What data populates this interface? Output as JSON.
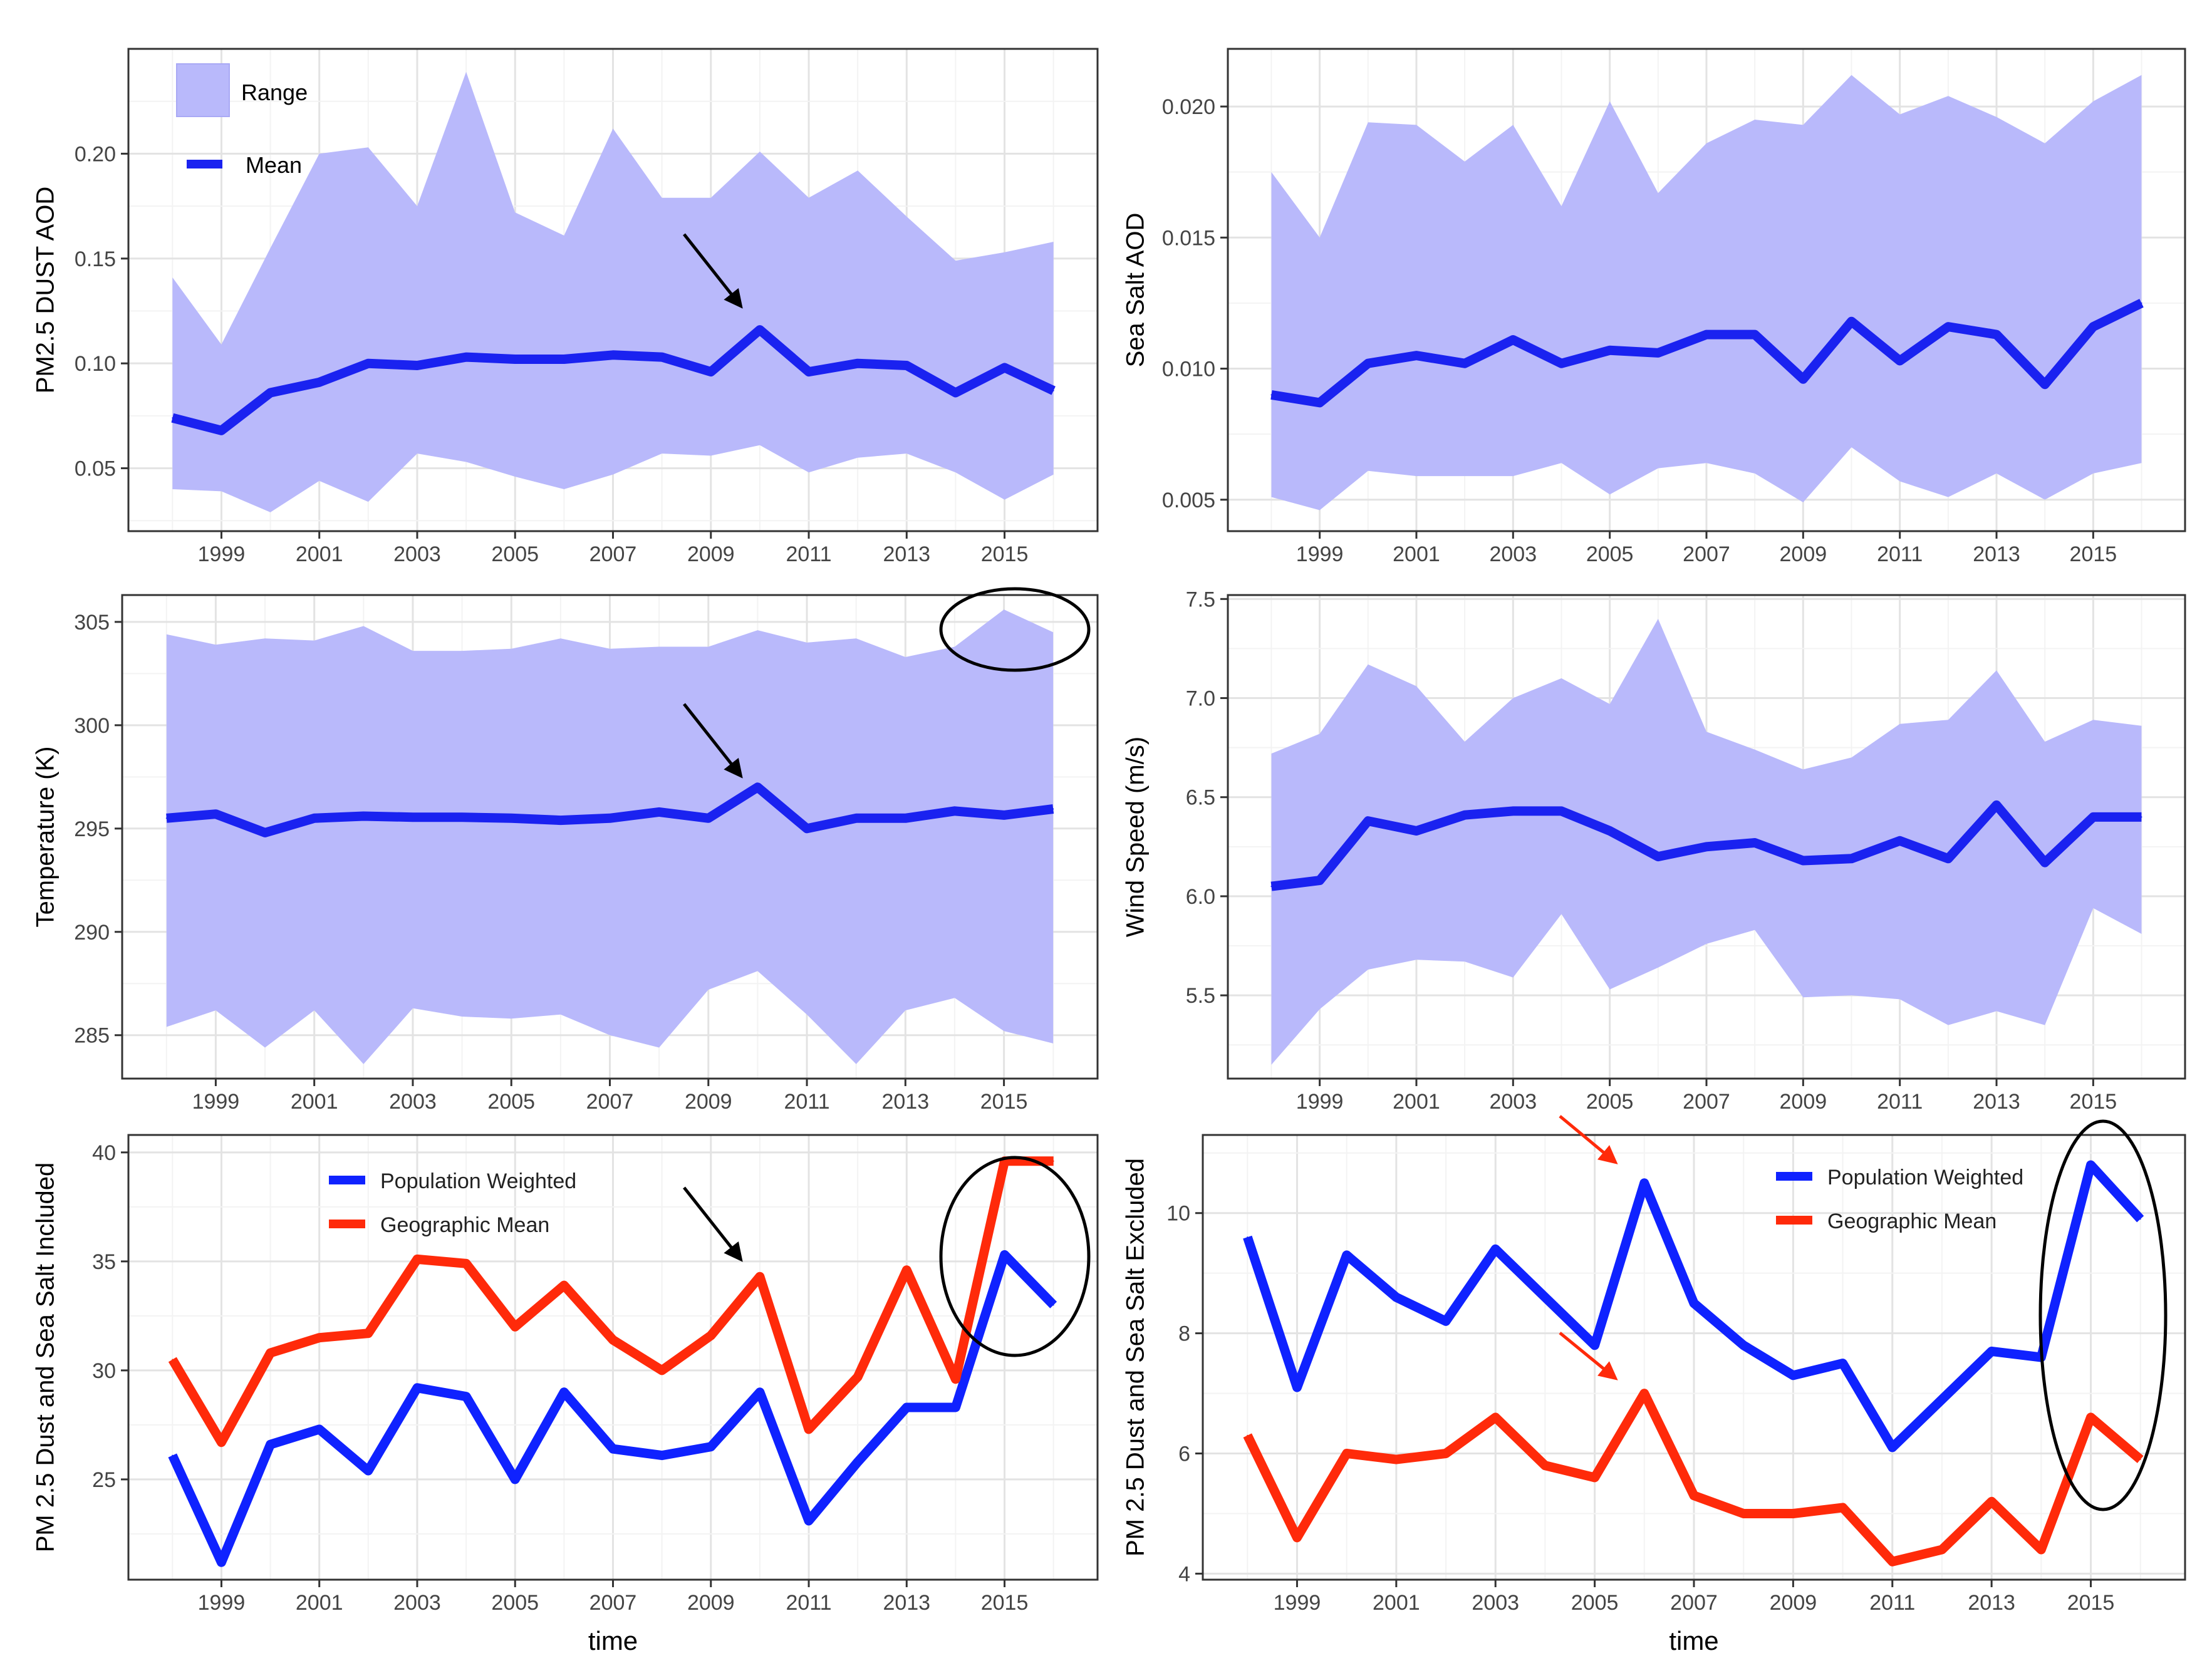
{
  "colors": {
    "mean": "#1a22f0",
    "range": "#b9b9fb",
    "population": "#0f22ff",
    "geographic": "#ff2a0a",
    "grid_major": "#e3e3e3",
    "grid_minor": "#f3f3f3",
    "panel_border": "#333333",
    "tick_text": "#444444",
    "annotation_black": "#000000",
    "annotation_red": "#ff2a0a"
  },
  "chart_data": [
    {
      "id": "dust",
      "type": "area",
      "title": "",
      "xlabel": "",
      "ylabel": "PM2.5 DUST AOD",
      "xlim": [
        1997.1,
        2016.9
      ],
      "ylim": [
        0.02,
        0.25
      ],
      "yticks": [
        0.05,
        0.1,
        0.15,
        0.2
      ],
      "ytick_labels": [
        "0.05",
        "0.10",
        "0.15",
        "0.20"
      ],
      "xticks": [
        1999,
        2001,
        2003,
        2005,
        2007,
        2009,
        2011,
        2013,
        2015
      ],
      "xtick_labels": [
        "1999",
        "2001",
        "2003",
        "2005",
        "2007",
        "2009",
        "2011",
        "2013",
        "2015"
      ],
      "x": [
        1998,
        1999,
        2000,
        2001,
        2002,
        2003,
        2004,
        2005,
        2006,
        2007,
        2008,
        2009,
        2010,
        2011,
        2012,
        2013,
        2014,
        2015,
        2016
      ],
      "series": [
        {
          "name": "Mean",
          "values": [
            0.074,
            0.068,
            0.086,
            0.091,
            0.1,
            0.099,
            0.103,
            0.102,
            0.102,
            0.104,
            0.103,
            0.096,
            0.116,
            0.096,
            0.1,
            0.099,
            0.086,
            0.098,
            0.087
          ]
        },
        {
          "name": "Range max",
          "values": [
            0.141,
            0.109,
            0.155,
            0.2,
            0.203,
            0.175,
            0.239,
            0.172,
            0.161,
            0.212,
            0.179,
            0.179,
            0.201,
            0.179,
            0.192,
            0.17,
            0.149,
            0.153,
            0.158
          ]
        },
        {
          "name": "Range min",
          "values": [
            0.04,
            0.039,
            0.029,
            0.044,
            0.034,
            0.057,
            0.053,
            0.046,
            0.04,
            0.047,
            0.057,
            0.056,
            0.061,
            0.048,
            0.055,
            0.057,
            0.048,
            0.035,
            0.047
          ]
        }
      ],
      "legend": [
        "Range",
        "Mean"
      ],
      "legend_position": "top-left"
    },
    {
      "id": "seasalt",
      "type": "area",
      "title": "",
      "xlabel": "",
      "ylabel": "Sea Salt AOD",
      "xlim": [
        1997.1,
        2016.9
      ],
      "ylim": [
        0.0038,
        0.0222
      ],
      "yticks": [
        0.005,
        0.01,
        0.015,
        0.02
      ],
      "ytick_labels": [
        "0.005",
        "0.010",
        "0.015",
        "0.020"
      ],
      "xticks": [
        1999,
        2001,
        2003,
        2005,
        2007,
        2009,
        2011,
        2013,
        2015
      ],
      "xtick_labels": [
        "1999",
        "2001",
        "2003",
        "2005",
        "2007",
        "2009",
        "2011",
        "2013",
        "2015"
      ],
      "x": [
        1998,
        1999,
        2000,
        2001,
        2002,
        2003,
        2004,
        2005,
        2006,
        2007,
        2008,
        2009,
        2010,
        2011,
        2012,
        2013,
        2014,
        2015,
        2016
      ],
      "series": [
        {
          "name": "Mean",
          "values": [
            0.009,
            0.0087,
            0.0102,
            0.0105,
            0.0102,
            0.0111,
            0.0102,
            0.0107,
            0.0106,
            0.0113,
            0.0113,
            0.0096,
            0.0118,
            0.0103,
            0.0116,
            0.0113,
            0.0094,
            0.0116,
            0.0125
          ]
        },
        {
          "name": "Range max",
          "values": [
            0.0175,
            0.015,
            0.0194,
            0.0193,
            0.0179,
            0.0193,
            0.0162,
            0.0202,
            0.0167,
            0.0186,
            0.0195,
            0.0193,
            0.0212,
            0.0197,
            0.0204,
            0.0196,
            0.0186,
            0.0202,
            0.0212
          ]
        },
        {
          "name": "Range min",
          "values": [
            0.0051,
            0.0046,
            0.0061,
            0.0059,
            0.0059,
            0.0059,
            0.0064,
            0.0052,
            0.0062,
            0.0064,
            0.006,
            0.0049,
            0.007,
            0.0057,
            0.0051,
            0.006,
            0.005,
            0.006,
            0.0064
          ]
        }
      ]
    },
    {
      "id": "temperature",
      "type": "area",
      "title": "",
      "xlabel": "",
      "ylabel": "Temperature (K)",
      "xlim": [
        1997.1,
        2016.9
      ],
      "ylim": [
        282.9,
        306.3
      ],
      "yticks": [
        285,
        290,
        295,
        300,
        305
      ],
      "ytick_labels": [
        "285",
        "290",
        "295",
        "300",
        "305"
      ],
      "xticks": [
        1999,
        2001,
        2003,
        2005,
        2007,
        2009,
        2011,
        2013,
        2015
      ],
      "xtick_labels": [
        "1999",
        "2001",
        "2003",
        "2005",
        "2007",
        "2009",
        "2011",
        "2013",
        "2015"
      ],
      "x": [
        1998,
        1999,
        2000,
        2001,
        2002,
        2003,
        2004,
        2005,
        2006,
        2007,
        2008,
        2009,
        2010,
        2011,
        2012,
        2013,
        2014,
        2015,
        2016
      ],
      "series": [
        {
          "name": "Mean",
          "values": [
            295.5,
            295.7,
            294.8,
            295.5,
            295.6,
            295.55,
            295.55,
            295.5,
            295.4,
            295.5,
            295.8,
            295.5,
            297.0,
            295.0,
            295.5,
            295.5,
            295.85,
            295.65,
            295.95
          ]
        },
        {
          "name": "Range max",
          "values": [
            304.4,
            303.9,
            304.2,
            304.1,
            304.8,
            303.6,
            303.6,
            303.7,
            304.2,
            303.7,
            303.8,
            303.8,
            304.6,
            304.0,
            304.2,
            303.3,
            303.8,
            305.6,
            304.5
          ]
        },
        {
          "name": "Range min",
          "values": [
            285.4,
            286.2,
            284.4,
            286.2,
            283.6,
            286.3,
            285.9,
            285.8,
            286.0,
            285.0,
            284.4,
            287.2,
            288.1,
            286.0,
            283.6,
            286.2,
            286.8,
            285.2,
            284.6
          ]
        }
      ]
    },
    {
      "id": "windspeed",
      "type": "area",
      "title": "",
      "xlabel": "",
      "ylabel": "Wind Speed (m/s)",
      "xlim": [
        1997.1,
        2016.9
      ],
      "ylim": [
        5.08,
        7.52
      ],
      "yticks": [
        5.5,
        6.0,
        6.5,
        7.0,
        7.5
      ],
      "ytick_labels": [
        "5.5",
        "6.0",
        "6.5",
        "7.0",
        "7.5"
      ],
      "xticks": [
        1999,
        2001,
        2003,
        2005,
        2007,
        2009,
        2011,
        2013,
        2015
      ],
      "xtick_labels": [
        "1999",
        "2001",
        "2003",
        "2005",
        "2007",
        "2009",
        "2011",
        "2013",
        "2015"
      ],
      "x": [
        1998,
        1999,
        2000,
        2001,
        2002,
        2003,
        2004,
        2005,
        2006,
        2007,
        2008,
        2009,
        2010,
        2011,
        2012,
        2013,
        2014,
        2015,
        2016
      ],
      "series": [
        {
          "name": "Mean",
          "values": [
            6.05,
            6.08,
            6.38,
            6.33,
            6.41,
            6.43,
            6.43,
            6.33,
            6.2,
            6.25,
            6.27,
            6.18,
            6.19,
            6.28,
            6.19,
            6.46,
            6.17,
            6.4,
            6.4
          ]
        },
        {
          "name": "Range max",
          "values": [
            6.72,
            6.82,
            7.17,
            7.06,
            6.78,
            7.0,
            7.1,
            6.97,
            7.4,
            6.83,
            6.74,
            6.64,
            6.7,
            6.87,
            6.89,
            7.14,
            6.78,
            6.89,
            6.86
          ]
        },
        {
          "name": "Range min",
          "values": [
            5.15,
            5.43,
            5.63,
            5.68,
            5.67,
            5.59,
            5.91,
            5.53,
            5.64,
            5.76,
            5.83,
            5.49,
            5.5,
            5.48,
            5.35,
            5.42,
            5.35,
            5.94,
            5.81
          ]
        }
      ]
    },
    {
      "id": "included",
      "type": "line",
      "title": "",
      "xlabel": "time",
      "ylabel": "PM 2.5 Dust and Sea Salt Included",
      "xlim": [
        1997.1,
        2016.9
      ],
      "ylim": [
        20.4,
        40.8
      ],
      "yticks": [
        25,
        30,
        35,
        40
      ],
      "ytick_labels": [
        "25",
        "30",
        "35",
        "40"
      ],
      "xticks": [
        1999,
        2001,
        2003,
        2005,
        2007,
        2009,
        2011,
        2013,
        2015
      ],
      "xtick_labels": [
        "1999",
        "2001",
        "2003",
        "2005",
        "2007",
        "2009",
        "2011",
        "2013",
        "2015"
      ],
      "x": [
        1998,
        1999,
        2000,
        2001,
        2002,
        2003,
        2004,
        2005,
        2006,
        2007,
        2008,
        2009,
        2010,
        2011,
        2012,
        2013,
        2014,
        2015,
        2016
      ],
      "series": [
        {
          "name": "Population Weighted",
          "values": [
            26.1,
            21.2,
            26.6,
            27.3,
            25.4,
            29.2,
            28.8,
            25.0,
            29.0,
            26.4,
            26.1,
            26.5,
            29.0,
            23.1,
            25.8,
            28.3,
            28.3,
            35.3,
            33.0
          ]
        },
        {
          "name": "Geographic Mean",
          "values": [
            30.5,
            26.7,
            30.8,
            31.5,
            31.7,
            35.1,
            34.9,
            32.0,
            33.9,
            31.4,
            30.0,
            31.6,
            34.3,
            27.3,
            29.7,
            34.6,
            29.6,
            39.6,
            39.6
          ]
        }
      ],
      "legend": [
        "Population Weighted",
        "Geographic Mean"
      ],
      "legend_position": "top"
    },
    {
      "id": "excluded",
      "type": "line",
      "title": "",
      "xlabel": "time",
      "ylabel": "PM 2.5 Dust and Sea Salt Excluded",
      "xlim": [
        1997.1,
        2016.9
      ],
      "ylim": [
        3.9,
        11.3
      ],
      "yticks": [
        4,
        6,
        8,
        10
      ],
      "ytick_labels": [
        "4",
        "6",
        "8",
        "10"
      ],
      "xticks": [
        1999,
        2001,
        2003,
        2005,
        2007,
        2009,
        2011,
        2013,
        2015
      ],
      "xtick_labels": [
        "1999",
        "2001",
        "2003",
        "2005",
        "2007",
        "2009",
        "2011",
        "2013",
        "2015"
      ],
      "x": [
        1998,
        1999,
        2000,
        2001,
        2002,
        2003,
        2004,
        2005,
        2006,
        2007,
        2008,
        2009,
        2010,
        2011,
        2012,
        2013,
        2014,
        2015,
        2016
      ],
      "series": [
        {
          "name": "Population Weighted",
          "values": [
            9.6,
            7.1,
            9.3,
            8.6,
            8.2,
            9.4,
            8.6,
            7.8,
            10.5,
            8.5,
            7.8,
            7.3,
            7.5,
            6.1,
            6.9,
            7.7,
            7.6,
            10.8,
            9.9
          ]
        },
        {
          "name": "Geographic Mean",
          "values": [
            6.3,
            4.6,
            6.0,
            5.9,
            6.0,
            6.6,
            5.8,
            5.6,
            7.0,
            5.3,
            5.0,
            5.0,
            5.1,
            4.2,
            4.4,
            5.2,
            4.4,
            6.6,
            5.9
          ]
        }
      ],
      "legend": [
        "Population Weighted",
        "Geographic Mean"
      ],
      "legend_position": "top-right"
    }
  ]
}
